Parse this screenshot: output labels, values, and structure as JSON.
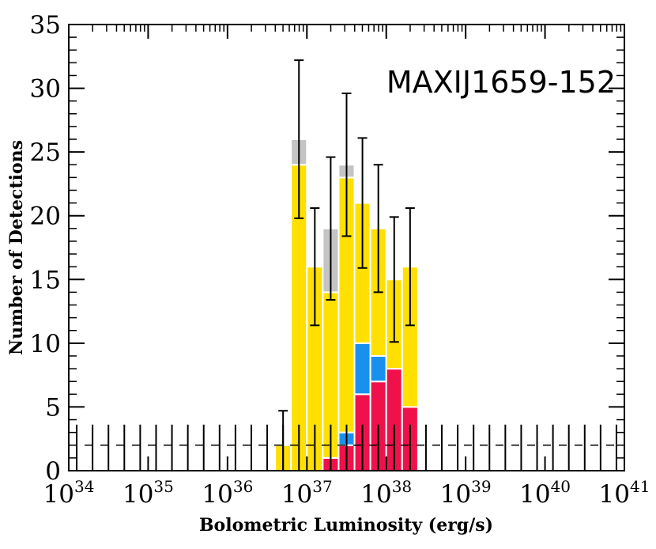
{
  "chart_data": {
    "type": "bar",
    "stacked": true,
    "title": "",
    "annotation": "MAXIJ1659-152",
    "xlabel": "Bolometric Luminosity (erg/s)",
    "ylabel": "Number of Detections",
    "x_scale": "log",
    "xlim_exponent": [
      34,
      41
    ],
    "ylim": [
      0,
      35
    ],
    "x_tick_labels": [
      {
        "base": "10",
        "exp": "34"
      },
      {
        "base": "10",
        "exp": "35"
      },
      {
        "base": "10",
        "exp": "36"
      },
      {
        "base": "10",
        "exp": "37"
      },
      {
        "base": "10",
        "exp": "38"
      },
      {
        "base": "10",
        "exp": "39"
      },
      {
        "base": "10",
        "exp": "40"
      },
      {
        "base": "10",
        "exp": "41"
      }
    ],
    "y_ticks": [
      0,
      5,
      10,
      15,
      20,
      25,
      30,
      35
    ],
    "y_tick_labels": [
      "0",
      "5",
      "10",
      "15",
      "20",
      "25",
      "30",
      "35"
    ],
    "grid": false,
    "legend": "none",
    "upper_limit_marker": 2,
    "bin_lower_exponents": [
      36.6,
      36.8,
      37.0,
      37.2,
      37.4,
      37.6,
      37.8,
      38.0,
      38.2
    ],
    "bin_width_exponent": 0.2,
    "totals": [
      2,
      26,
      16,
      19,
      24,
      21,
      19,
      15,
      16
    ],
    "errors": [
      2.7,
      6.2,
      4.6,
      5.6,
      5.6,
      5.1,
      5.0,
      4.9,
      4.6
    ],
    "series": [
      {
        "color": "#f0114a",
        "values": [
          0,
          0,
          0,
          1,
          2,
          6,
          7,
          8,
          5
        ]
      },
      {
        "color": "#1a90ee",
        "values": [
          0,
          0,
          0,
          0,
          1,
          4,
          2,
          0,
          0
        ]
      },
      {
        "color": "#ffe000",
        "values": [
          2,
          24,
          16,
          13,
          20,
          11,
          10,
          7,
          11
        ]
      },
      {
        "color": "#c4c4c4",
        "values": [
          0,
          2,
          0,
          5,
          1,
          0,
          0,
          0,
          0
        ]
      }
    ]
  }
}
